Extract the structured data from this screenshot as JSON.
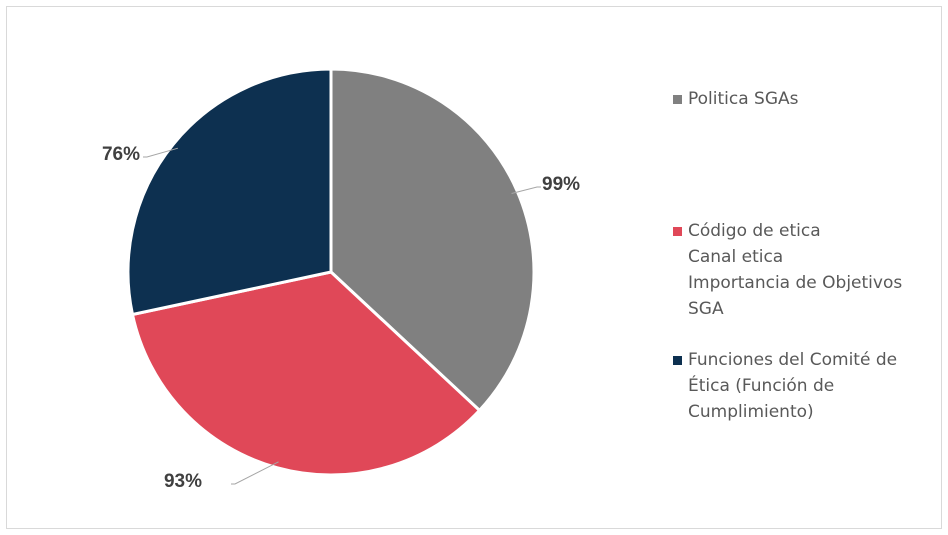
{
  "chart_data": {
    "type": "pie",
    "title": "",
    "categories": [
      "Politica SGAs",
      "Código de etica\nCanal etica\nImportancia de Objetivos SGA",
      "Funciones del Comité de Ética (Función de Cumplimiento)"
    ],
    "legend_labels": [
      "Politica SGAs",
      "Código de etica\nCanal etica\nImportancia de Objetivos\nSGA",
      "Funciones del Comité de\nÉtica (Función de\nCumplimiento)"
    ],
    "values": [
      99,
      93,
      76
    ],
    "data_labels": [
      "99%",
      "93%",
      "76%"
    ],
    "colors": [
      "#808080",
      "#e04858",
      "#0d3050"
    ],
    "legend_position": "right",
    "start_angle_deg": 0,
    "direction": "clockwise"
  }
}
